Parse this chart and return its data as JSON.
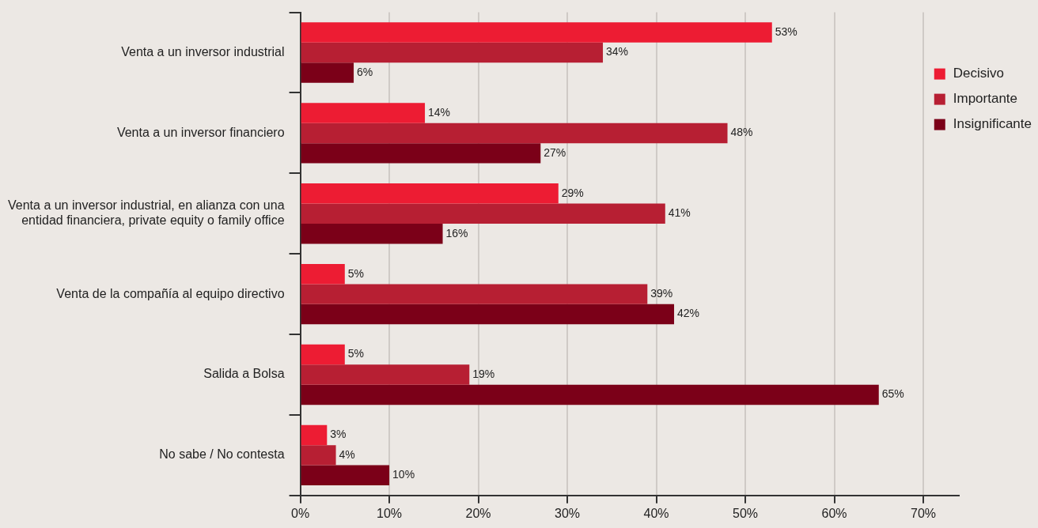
{
  "chart_data": {
    "type": "bar",
    "orientation": "horizontal",
    "categories": [
      "Venta a un inversor industrial",
      "Venta a un inversor financiero",
      "Venta a un inversor industrial, en alianza con una entidad financiera, private equity o family office",
      "Venta de la compañía al equipo directivo",
      "Salida a Bolsa",
      "No sabe / No contesta"
    ],
    "series": [
      {
        "name": "Decisivo",
        "color": "#ed1c33",
        "values": [
          53,
          14,
          29,
          5,
          5,
          3
        ],
        "value_labels": [
          "53%",
          "14%",
          "29%",
          "5%",
          "5%",
          "3%"
        ]
      },
      {
        "name": "Importante",
        "color": "#b71f33",
        "values": [
          34,
          48,
          41,
          39,
          19,
          4
        ],
        "value_labels": [
          "34%",
          "48%",
          "41%",
          "39%",
          "19%",
          "4%"
        ]
      },
      {
        "name": "Insignificante",
        "color": "#7b0018",
        "values": [
          6,
          27,
          16,
          42,
          65,
          10
        ],
        "value_labels": [
          "6%",
          "27%",
          "16%",
          "42%",
          "65%",
          "10%"
        ]
      }
    ],
    "xlim": [
      0,
      74
    ],
    "xticks": [
      {
        "value": 0,
        "label": "0%"
      },
      {
        "value": 10,
        "label": "10%"
      },
      {
        "value": 20,
        "label": "20%"
      },
      {
        "value": 30,
        "label": "30%"
      },
      {
        "value": 40,
        "label": "40%"
      },
      {
        "value": 50,
        "label": "50%"
      },
      {
        "value": 60,
        "label": "60%"
      },
      {
        "value": 70,
        "label": "70%"
      }
    ],
    "grid": "x",
    "legend": "top right"
  }
}
